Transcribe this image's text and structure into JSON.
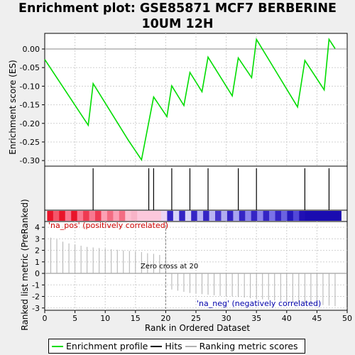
{
  "title": "Enrichment plot: GSE85871 MCF7 BERBERINE 10UM 12H",
  "colors": {
    "background": "#efefef",
    "es_line": "#00dd00",
    "hits": "#000000",
    "metric": "#b0b0b0",
    "zero_cross_line": "#808080",
    "pos_label": "#cc0000",
    "neg_label": "#0000aa",
    "grid": "#d0d0d0"
  },
  "chart_data": {
    "type": "line",
    "title": "Enrichment plot: GSE85871 MCF7 BERBERINE 10UM 12H",
    "xlabel": "Rank in Ordered Dataset",
    "xlim": [
      0,
      50
    ],
    "x_ticks": [
      0,
      5,
      10,
      15,
      20,
      25,
      30,
      35,
      40,
      45,
      50
    ],
    "enrichment_profile": {
      "name": "Enrichment profile",
      "ylabel": "Enrichment score (ES)",
      "ylim": [
        -0.315,
        0.042
      ],
      "y_ticks": [
        0.0,
        -0.05,
        -0.1,
        -0.15,
        -0.2,
        -0.25,
        -0.3
      ],
      "y_tick_labels": [
        "0.00",
        "-0.05",
        "-0.10",
        "-0.15",
        "-0.20",
        "-0.25",
        "-0.30"
      ],
      "x": [
        0,
        7.2,
        8,
        13.8,
        16,
        18,
        20.2,
        21,
        23,
        24,
        26,
        27,
        31,
        32,
        34.2,
        35,
        41.8,
        43,
        46.2,
        47,
        48
      ],
      "y": [
        -0.028,
        -0.205,
        -0.093,
        -0.245,
        -0.298,
        -0.129,
        -0.182,
        -0.099,
        -0.152,
        -0.063,
        -0.115,
        -0.022,
        -0.126,
        -0.024,
        -0.077,
        0.026,
        -0.156,
        -0.031,
        -0.11,
        0.026,
        0.001
      ]
    },
    "hits": {
      "name": "Hits",
      "positions": [
        8,
        17.2,
        18,
        21,
        24,
        27,
        32,
        35,
        43,
        47
      ]
    },
    "ranking_metric": {
      "name": "Ranking metric scores",
      "ylabel": "Ranked list metric (PreRanked)",
      "ylim": [
        -3.2,
        4.5
      ],
      "y_ticks": [
        4,
        3,
        2,
        1,
        0,
        -1,
        -2,
        -3
      ],
      "x": [
        1,
        2,
        3,
        4,
        5,
        6,
        7,
        8,
        9,
        10,
        11,
        12,
        13,
        14,
        15,
        16,
        17,
        18,
        19,
        20,
        21,
        22,
        23,
        24,
        25,
        26,
        27,
        28,
        29,
        30,
        31,
        32,
        33,
        34,
        35,
        36,
        37,
        38,
        39,
        40,
        41,
        42,
        43,
        44,
        45,
        46,
        47,
        48
      ],
      "values": [
        3.1,
        2.95,
        2.75,
        2.6,
        2.5,
        2.4,
        2.3,
        2.25,
        2.2,
        2.15,
        2.1,
        2.05,
        2.0,
        1.95,
        1.9,
        1.85,
        1.75,
        1.7,
        1.6,
        1.5,
        -1.4,
        -1.5,
        -1.6,
        -1.7,
        -1.75,
        -1.8,
        -1.85,
        -1.9,
        -1.95,
        -2.0,
        -2.0,
        -2.05,
        -2.1,
        -2.15,
        -2.2,
        -2.25,
        -2.3,
        -2.35,
        -2.4,
        -2.45,
        -2.5,
        -2.55,
        -2.6,
        -2.65,
        -2.7,
        -2.75,
        -2.8,
        -2.85
      ]
    },
    "zero_cross": {
      "x": 20,
      "label": "Zero cross at 20"
    },
    "pos_label": "'na_pos' (positively correlated)",
    "neg_label": "'na_neg' (negatively correlated)",
    "heatmap_colors": [
      "#e8142a",
      "#f4566a",
      "#e8142a",
      "#f87890",
      "#e8142a",
      "#f87890",
      "#ee3a52",
      "#f87890",
      "#ee3a52",
      "#fca0b4",
      "#f36c82",
      "#fca0b4",
      "#f36c82",
      "#fcc0d0",
      "#f8b4c8",
      "#fcc8dc",
      "#fcc8dc",
      "#fcc8dc",
      "#fcc8dc",
      "#ecd4f4",
      "#3424c4",
      "#d8d4f8",
      "#3424c4",
      "#d8d4f8",
      "#3424c4",
      "#b8b4f4",
      "#3424c4",
      "#b8b4f4",
      "#4434cc",
      "#b0acf0",
      "#3424c4",
      "#a8a4f0",
      "#3424c4",
      "#8c84ec",
      "#3424c4",
      "#8c84ec",
      "#3424c4",
      "#7a72e8",
      "#3424c4",
      "#6a62e0",
      "#2418bc",
      "#5248d8",
      "#2010b4",
      "#1a0cb0",
      "#1a0cb0",
      "#1a0cb0",
      "#1a0cb0",
      "#1a0cb0",
      "#1a0cb0"
    ]
  },
  "legend": {
    "items": [
      {
        "label": "Enrichment profile",
        "color": "#00dd00"
      },
      {
        "label": "Hits",
        "color": "#000000"
      },
      {
        "label": "Ranking metric scores",
        "color": "#b0b0b0"
      }
    ]
  }
}
